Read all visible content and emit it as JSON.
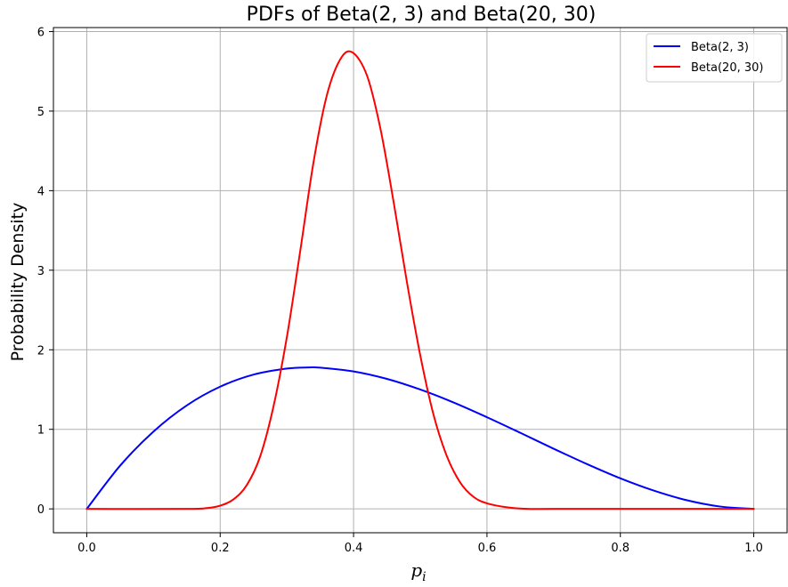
{
  "chart_data": {
    "type": "line",
    "title": "PDFs of Beta(2, 3) and Beta(20, 30)",
    "xlabel": "p",
    "xlabel_subscript": "i",
    "ylabel": "Probability Density",
    "xlim": [
      -0.05,
      1.05
    ],
    "ylim": [
      -0.3,
      6.05
    ],
    "x_ticks": [
      {
        "value": 0.0,
        "label": "0.0"
      },
      {
        "value": 0.2,
        "label": "0.2"
      },
      {
        "value": 0.4,
        "label": "0.4"
      },
      {
        "value": 0.6,
        "label": "0.6"
      },
      {
        "value": 0.8,
        "label": "0.8"
      },
      {
        "value": 1.0,
        "label": "1.0"
      }
    ],
    "y_ticks": [
      {
        "value": 0,
        "label": "0"
      },
      {
        "value": 1,
        "label": "1"
      },
      {
        "value": 2,
        "label": "2"
      },
      {
        "value": 3,
        "label": "3"
      },
      {
        "value": 4,
        "label": "4"
      },
      {
        "value": 5,
        "label": "5"
      },
      {
        "value": 6,
        "label": "6"
      }
    ],
    "grid": true,
    "legend_position": "top-right",
    "series": [
      {
        "name": "Beta(2, 3)",
        "color": "#0000ff",
        "x": [
          0.0,
          0.05,
          0.1,
          0.15,
          0.2,
          0.25,
          0.3,
          0.333,
          0.35,
          0.4,
          0.45,
          0.5,
          0.55,
          0.6,
          0.65,
          0.7,
          0.75,
          0.8,
          0.85,
          0.9,
          0.95,
          1.0
        ],
        "y": [
          0.0,
          0.543,
          0.972,
          1.301,
          1.536,
          1.688,
          1.764,
          1.778,
          1.775,
          1.728,
          1.634,
          1.5,
          1.337,
          1.152,
          0.956,
          0.756,
          0.563,
          0.384,
          0.23,
          0.108,
          0.029,
          0.0
        ]
      },
      {
        "name": "Beta(20, 30)",
        "color": "#ff0000",
        "x": [
          0.0,
          0.15,
          0.18,
          0.2,
          0.22,
          0.24,
          0.26,
          0.28,
          0.3,
          0.32,
          0.34,
          0.36,
          0.38,
          0.398,
          0.42,
          0.44,
          0.46,
          0.48,
          0.5,
          0.52,
          0.54,
          0.56,
          0.58,
          0.6,
          0.63,
          0.66,
          0.7,
          0.8,
          1.0
        ],
        "y": [
          0.0,
          0.0,
          0.01,
          0.04,
          0.12,
          0.3,
          0.66,
          1.29,
          2.16,
          3.24,
          4.36,
          5.2,
          5.65,
          5.74,
          5.45,
          4.79,
          3.86,
          2.85,
          1.93,
          1.18,
          0.66,
          0.33,
          0.15,
          0.07,
          0.02,
          0.0,
          0.0,
          0.0,
          0.0
        ]
      }
    ]
  }
}
